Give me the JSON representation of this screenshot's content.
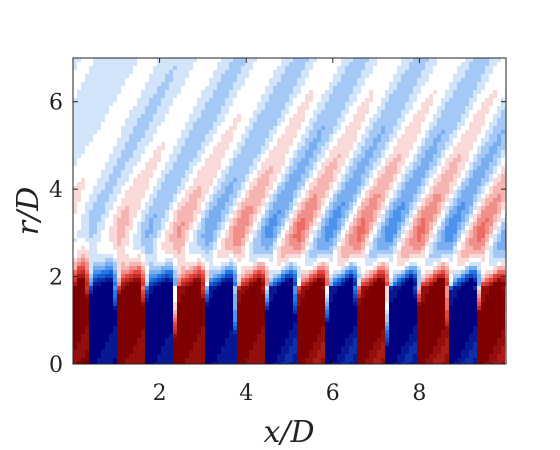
{
  "chart_data": {
    "type": "heatmap",
    "title": "",
    "xlabel": "x/D",
    "ylabel": "r/D",
    "xlim": [
      0,
      10
    ],
    "ylim": [
      0,
      7
    ],
    "xticks": [
      2,
      4,
      6,
      8
    ],
    "xtick_labels": [
      "2",
      "4",
      "6",
      "8"
    ],
    "yticks": [
      0,
      2,
      4,
      6
    ],
    "ytick_labels": [
      "0",
      "2",
      "4",
      "6"
    ],
    "grid": false,
    "legend": "none",
    "colormap": {
      "negative_strong": "#00007f",
      "negative_mid": "#1f78e8",
      "neutral": "#ffffff",
      "positive_mid": "#e8463c",
      "positive_strong": "#7f0000"
    },
    "core_region": {
      "description_values": {
        "core_top_r_over_D": 1.9,
        "cells": [
          {
            "x_start": 0.0,
            "x_end": 0.35,
            "sign": 1
          },
          {
            "x_start": 0.35,
            "x_end": 1.0,
            "sign": -1
          },
          {
            "x_start": 1.0,
            "x_end": 1.65,
            "sign": 1
          },
          {
            "x_start": 1.65,
            "x_end": 2.35,
            "sign": -1
          },
          {
            "x_start": 2.35,
            "x_end": 3.05,
            "sign": 1
          },
          {
            "x_start": 3.05,
            "x_end": 3.75,
            "sign": -1
          },
          {
            "x_start": 3.75,
            "x_end": 4.45,
            "sign": 1
          },
          {
            "x_start": 4.45,
            "x_end": 5.15,
            "sign": -1
          },
          {
            "x_start": 5.15,
            "x_end": 5.85,
            "sign": 1
          },
          {
            "x_start": 5.85,
            "x_end": 6.55,
            "sign": -1
          },
          {
            "x_start": 6.55,
            "x_end": 7.25,
            "sign": 1
          },
          {
            "x_start": 7.25,
            "x_end": 7.95,
            "sign": -1
          },
          {
            "x_start": 7.95,
            "x_end": 8.65,
            "sign": 1
          },
          {
            "x_start": 8.65,
            "x_end": 9.35,
            "sign": -1
          },
          {
            "x_start": 9.35,
            "x_end": 10.0,
            "sign": 1
          }
        ]
      }
    },
    "wave_parameters": {
      "wavelength_x_over_D": 1.4,
      "phase_slope": 0.55
    }
  }
}
